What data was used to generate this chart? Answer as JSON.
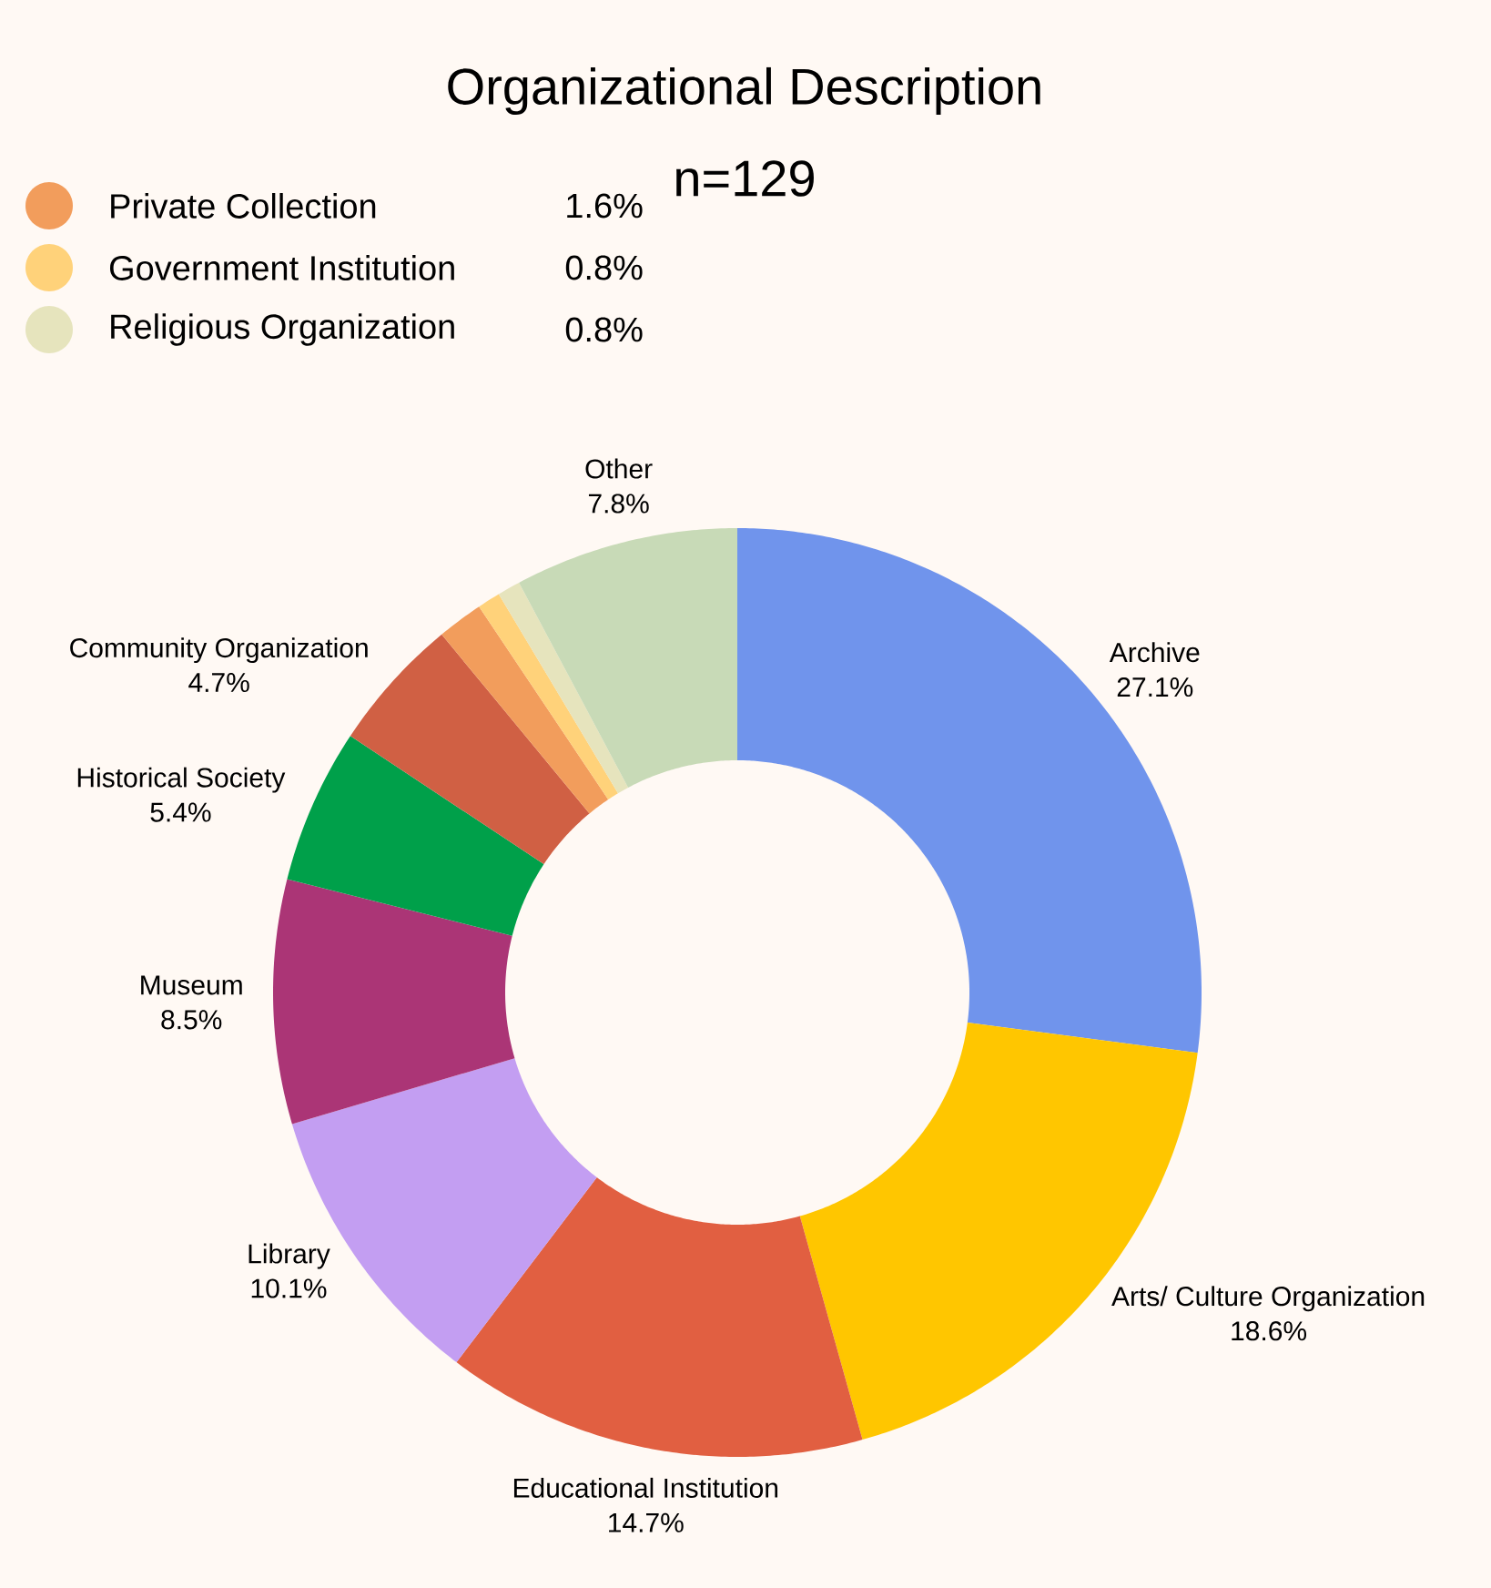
{
  "chart_data": {
    "type": "donut",
    "title": "Organizational Description",
    "subtitle": "n=129",
    "categories": [
      "Archive",
      "Arts/ Culture Organization",
      "Educational Institution",
      "Library",
      "Museum",
      "Historical Society",
      "Community Organization",
      "Private Collection",
      "Government Institution",
      "Religious Organization",
      "Other"
    ],
    "values": [
      27.1,
      18.6,
      14.7,
      10.1,
      8.5,
      5.4,
      4.7,
      1.6,
      0.8,
      0.8,
      7.8
    ],
    "colors": [
      "#7094ec",
      "#ffc600",
      "#e15f41",
      "#c39ef2",
      "#ab3576",
      "#00a04a",
      "#d06044",
      "#f29d5c",
      "#ffd27a",
      "#e6e4bd",
      "#c8dab7"
    ],
    "value_labels": [
      "27.1%",
      "18.6%",
      "14.7%",
      "10.1%",
      "8.5%",
      "5.4%",
      "4.7%",
      "1.6%",
      "0.8%",
      "0.8%",
      "7.8%"
    ],
    "legend": "top left"
  }
}
